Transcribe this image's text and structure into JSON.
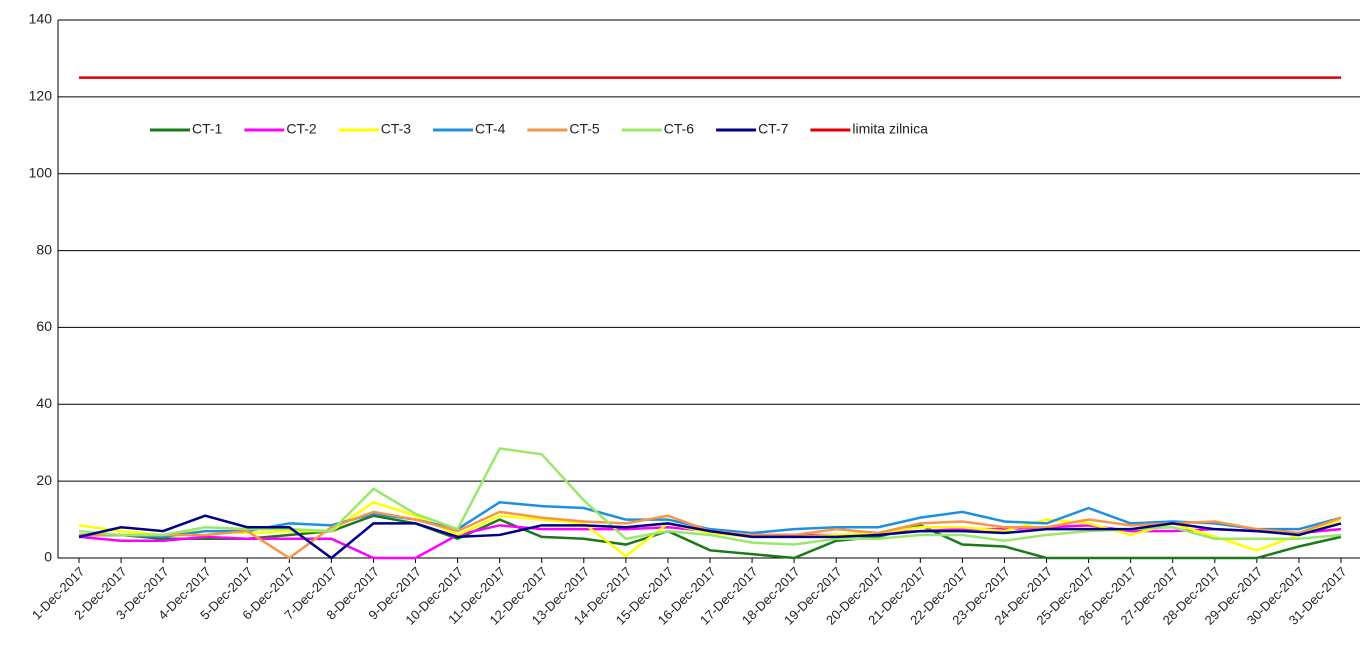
{
  "chart_data": {
    "type": "line",
    "categories": [
      "1-Dec-2017",
      "2-Dec-2017",
      "3-Dec-2017",
      "4-Dec-2017",
      "5-Dec-2017",
      "6-Dec-2017",
      "7-Dec-2017",
      "8-Dec-2017",
      "9-Dec-2017",
      "10-Dec-2017",
      "11-Dec-2017",
      "12-Dec-2017",
      "13-Dec-2017",
      "14-Dec-2017",
      "15-Dec-2017",
      "16-Dec-2017",
      "17-Dec-2017",
      "18-Dec-2017",
      "19-Dec-2017",
      "20-Dec-2017",
      "21-Dec-2017",
      "22-Dec-2017",
      "23-Dec-2017",
      "24-Dec-2017",
      "25-Dec-2017",
      "26-Dec-2017",
      "27-Dec-2017",
      "28-Dec-2017",
      "29-Dec-2017",
      "30-Dec-2017",
      "31-Dec-2017"
    ],
    "series": [
      {
        "name": "CT-1",
        "color": "#1a7a1a",
        "values": [
          6,
          6,
          5,
          5,
          5,
          6,
          7,
          11,
          9,
          5,
          10,
          5.5,
          5,
          3.5,
          7,
          2,
          1,
          0,
          4.5,
          5.5,
          8.5,
          3.5,
          3,
          0,
          0,
          0,
          0,
          0,
          0,
          3,
          5.5
        ]
      },
      {
        "name": "CT-2",
        "color": "#ff00ff",
        "values": [
          5.5,
          4.5,
          4.5,
          5.5,
          5,
          5,
          5,
          0,
          0,
          6,
          8.5,
          7.5,
          7.5,
          7.5,
          8,
          7,
          6,
          6,
          6,
          6.5,
          7,
          7.5,
          7.5,
          8,
          8.5,
          7,
          7,
          7.5,
          7,
          6.5,
          7.5
        ]
      },
      {
        "name": "CT-3",
        "color": "#ffff00",
        "values": [
          8.5,
          7,
          6,
          7,
          6.5,
          7,
          7,
          14.5,
          11,
          6,
          11,
          10,
          9,
          0.5,
          9,
          6.5,
          5.5,
          5.5,
          6,
          6.5,
          8,
          8,
          7,
          10,
          9,
          6,
          9,
          5.5,
          2,
          6,
          10
        ]
      },
      {
        "name": "CT-4",
        "color": "#1e90e0",
        "values": [
          6,
          6,
          5.5,
          7,
          7,
          9,
          8.5,
          11.5,
          10,
          7.5,
          14.5,
          13.5,
          13,
          10,
          10,
          7.5,
          6.5,
          7.5,
          8,
          8,
          10.5,
          12,
          9.5,
          9,
          13,
          9,
          9.5,
          9,
          7.5,
          7.5,
          10.5
        ]
      },
      {
        "name": "CT-5",
        "color": "#f79646",
        "values": [
          6,
          6,
          6,
          6,
          7,
          0,
          8,
          12,
          10,
          7,
          12,
          10.5,
          9.5,
          9,
          11,
          7,
          6,
          6,
          7.5,
          6.5,
          9,
          9.5,
          8,
          8,
          10,
          8.5,
          9,
          9.5,
          7.5,
          6.5,
          10.5
        ]
      },
      {
        "name": "CT-6",
        "color": "#99e86a",
        "values": [
          7,
          6,
          6,
          8,
          7.5,
          7.5,
          7,
          18,
          11.5,
          7.5,
          28.5,
          27,
          15,
          5,
          7,
          6,
          4,
          3.5,
          5,
          5,
          6,
          6,
          4.5,
          6,
          7,
          7.5,
          8,
          5,
          5,
          5,
          6
        ]
      },
      {
        "name": "CT-7",
        "color": "#00008b",
        "values": [
          5.5,
          8,
          7,
          11,
          8,
          8,
          0,
          9,
          9,
          5.5,
          6,
          8.5,
          8.5,
          8,
          9,
          7,
          5.5,
          5.5,
          5.5,
          6,
          7,
          7,
          6.5,
          7.5,
          7.5,
          7.5,
          9,
          7.5,
          7,
          6,
          9
        ]
      },
      {
        "name": "limita zilnica",
        "color": "#e00000",
        "values": [
          125,
          125,
          125,
          125,
          125,
          125,
          125,
          125,
          125,
          125,
          125,
          125,
          125,
          125,
          125,
          125,
          125,
          125,
          125,
          125,
          125,
          125,
          125,
          125,
          125,
          125,
          125,
          125,
          125,
          125,
          125
        ]
      }
    ],
    "ylim": [
      0,
      140
    ],
    "yticks": [
      0,
      20,
      40,
      60,
      80,
      100,
      120,
      140
    ],
    "grid": true
  }
}
